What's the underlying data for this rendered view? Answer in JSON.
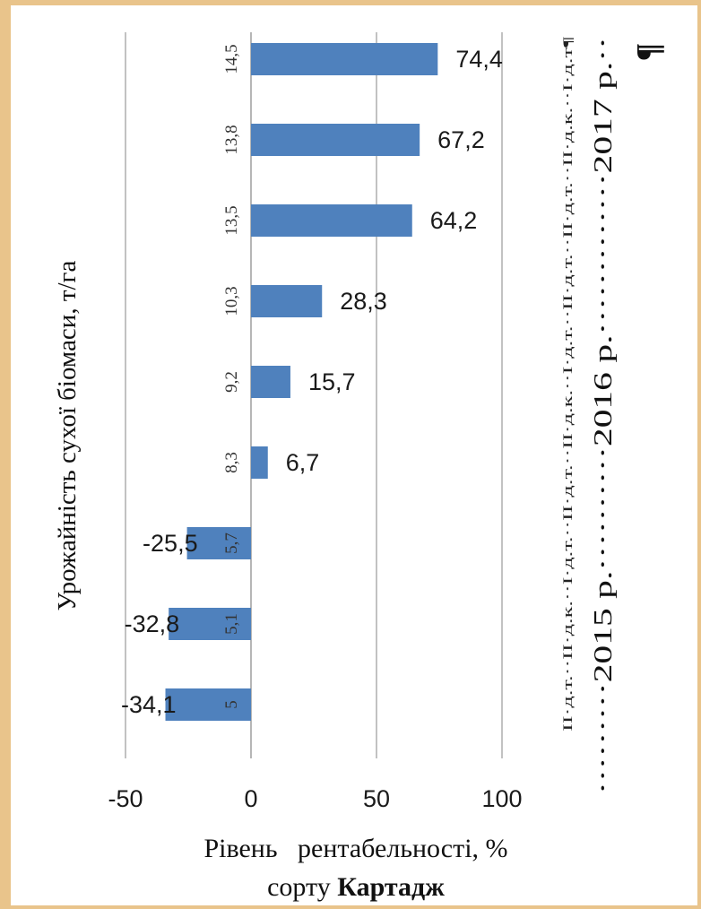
{
  "chart_data": {
    "type": "bar",
    "orientation": "horizontal",
    "categories": [
      "5",
      "5,1",
      "5,7",
      "8,3",
      "9,2",
      "10,3",
      "13,5",
      "13,8",
      "14,5"
    ],
    "values": [
      -34.1,
      -32.8,
      -25.5,
      6.7,
      15.7,
      28.3,
      64.2,
      67.2,
      74.4
    ],
    "data_labels": [
      "-34,1",
      "-32,8",
      "-25,5",
      "6,7",
      "15,7",
      "28,3",
      "64,2",
      "67,2",
      "74,4"
    ],
    "xlim": [
      -50,
      100
    ],
    "x_ticks": [
      -50,
      0,
      50,
      100
    ],
    "x_tick_labels": [
      "-50",
      "0",
      "50",
      "100"
    ],
    "grid": true,
    "legend": "none",
    "ylabel": "Урожайність сухої біомаси, т/га",
    "xlabel_line1": "Рівень   рентабельності, %",
    "xlabel_line2_prefix": "сорту ",
    "xlabel_line2_bold": "Картадж",
    "bar_color": "#4f81bd",
    "right_small_text": "ІІ·д.т.··ІІ·д.к.··І·д.т.··ІІ·д.т.··ІІ·д.к.··І·д.т.··ІІ·д.т.··ІІ·д.т.··ІІ·д.к.··І·д.т¶",
    "right_year_text": "·········2015 р.··········2016 р.·············2017 р.··",
    "pilcrow": "¶"
  }
}
